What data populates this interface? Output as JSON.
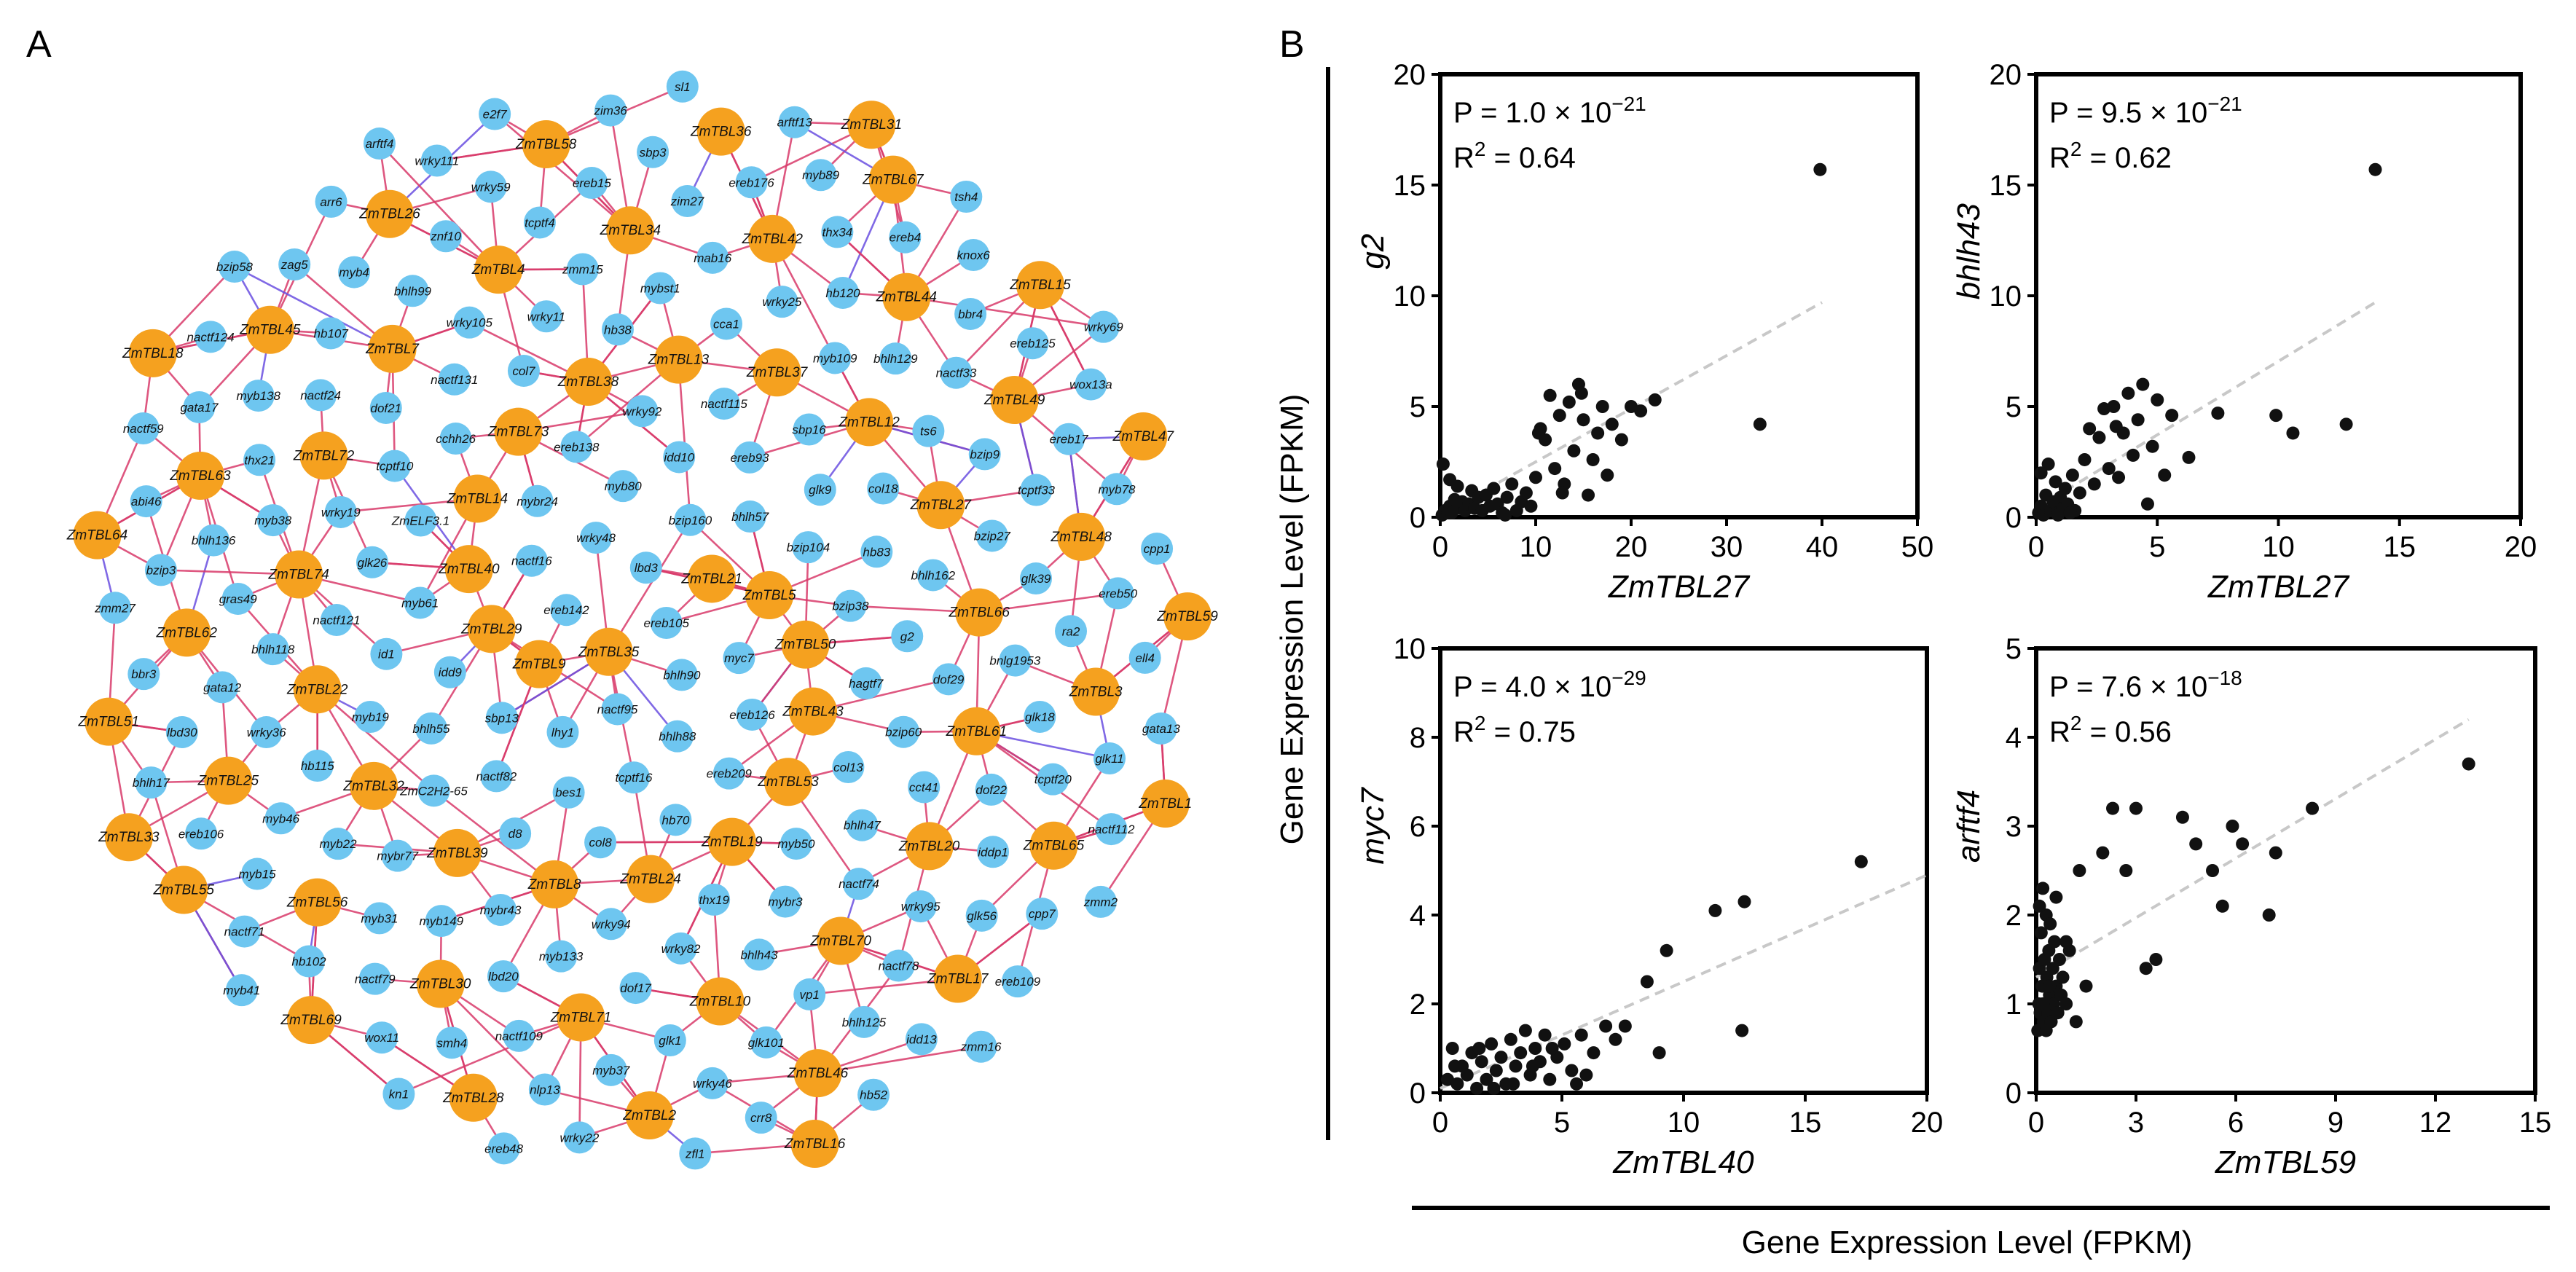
{
  "figure": {
    "panel_a_label": "A",
    "panel_b_label": "B",
    "shared_y_label": "Gene Expression Level (FPKM)",
    "shared_x_label": "Gene Expression Level (FPKM)"
  },
  "colors": {
    "gene_node": "#f5a11f",
    "tf_node": "#6ec6f0",
    "positive_edge": "#d83a6a",
    "negative_edge": "#6a4fe0",
    "point": "#111111",
    "fit_line": "#c8c8c8"
  },
  "network": {
    "gene_nodes": [
      "ZmTBL35",
      "ZmTBL21",
      "ZmTBL9",
      "ZmTBL5",
      "ZmTBL29",
      "ZmTBL50",
      "ZmTBL40",
      "ZmTBL43",
      "ZmTBL14",
      "ZmTBL53",
      "ZmTBL73",
      "ZmTBL19",
      "ZmTBL38",
      "ZmTBL24",
      "ZmTBL13",
      "ZmTBL8",
      "ZmTBL37",
      "ZmTBL39",
      "ZmTBL12",
      "ZmTBL32",
      "ZmTBL27",
      "ZmTBL22",
      "ZmTBL66",
      "ZmTBL74",
      "ZmTBL61",
      "ZmTBL72",
      "ZmTBL20",
      "ZmTBL7",
      "ZmTBL70",
      "ZmTBL4",
      "ZmTBL10",
      "ZmTBL34",
      "ZmTBL71",
      "ZmTBL42",
      "ZmTBL30",
      "ZmTBL44",
      "ZmTBL56",
      "ZmTBL49",
      "ZmTBL25",
      "ZmTBL48",
      "ZmTBL62",
      "ZmTBL3",
      "ZmTBL63",
      "ZmTBL65",
      "ZmTBL45",
      "ZmTBL17",
      "ZmTBL26",
      "ZmTBL46",
      "ZmTBL58",
      "ZmTBL2",
      "ZmTBL36",
      "ZmTBL28",
      "ZmTBL67",
      "ZmTBL69",
      "ZmTBL15",
      "ZmTBL55",
      "ZmTBL47",
      "ZmTBL51",
      "ZmTBL59",
      "ZmTBL64",
      "ZmTBL1",
      "ZmTBL33",
      "ZmTBL31",
      "ZmTBL16",
      "ZmTBL18"
    ],
    "tf_nodes": [
      "ereb105",
      "lbd3",
      "bhlh90",
      "ereb142",
      "nactf95",
      "wrky48",
      "myc7",
      "bzip160",
      "bhlh88",
      "nactf16",
      "lhy1",
      "myb80",
      "ereb126",
      "bhlh57",
      "tcptf16",
      "mybr24",
      "sbp13",
      "idd10",
      "ereb209",
      "bzip104",
      "bes1",
      "ereb138",
      "idd9",
      "ereb93",
      "hb70",
      "bzip38",
      "nactf82",
      "wrky92",
      "myb61",
      "glk9",
      "col8",
      "hagtf7",
      "bhlh55",
      "nactf115",
      "ZmELF3.1",
      "hb83",
      "d8",
      "col13",
      "id1",
      "sbp16",
      "cchh26",
      "g2",
      "ZmC2H2-65",
      "myb50",
      "glk26",
      "col18",
      "col7",
      "bzip60",
      "myb19",
      "thx19",
      "tcptf10",
      "bhlh162",
      "hb38",
      "bhlh47",
      "nactf121",
      "wrky94",
      "nactf131",
      "dof29",
      "cca1",
      "mybr3",
      "wrky19",
      "mybr43",
      "wrky11",
      "cct41",
      "myb109",
      "wrky82",
      "dof21",
      "mybr77",
      "mybst1",
      "nactf74",
      "ts6",
      "myb133",
      "wrky105",
      "hb115",
      "wrky25",
      "bhlh43",
      "bzip27",
      "myb149",
      "zmm15",
      "bhlh118",
      "bhlh129",
      "dof17",
      "bnlg1953",
      "myb22",
      "mab16",
      "myb38",
      "bzip9",
      "lbd20",
      "dof22",
      "wrky36",
      "hb120",
      "nactf24",
      "glk39",
      "myb31",
      "wrky95",
      "gras49",
      "nactf33",
      "bhlh99",
      "glk18",
      "myb46",
      "vp1",
      "thx21",
      "tcptf33",
      "tcptf4",
      "iddp1",
      "gata12",
      "glk1",
      "hb107",
      "ra2",
      "zim27",
      "nactf78",
      "bhlh136",
      "nactf109",
      "znf10",
      "tcptf20",
      "thx34",
      "glk101",
      "myb138",
      "nactf79",
      "ereb15",
      "glk56",
      "bbr4",
      "myb37",
      "myb4",
      "myb15",
      "ereb176",
      "bhlh125",
      "ereb17",
      "smh4",
      "wrky59",
      "lbd30",
      "ereb4",
      "wrky46",
      "ereb50",
      "hb102",
      "sbp3",
      "bzip3",
      "ereb125",
      "nlp13",
      "glk11",
      "ereb106",
      "myb89",
      "gata17",
      "myb78",
      "wox11",
      "cpp7",
      "bbr3",
      "knox6",
      "zag5",
      "ell4",
      "nactf71",
      "idd13",
      "abi46",
      "wox13a",
      "wrky111",
      "nactf112",
      "bhlh17",
      "crr8",
      "nactf124",
      "cpp1",
      "zim36",
      "ereb109",
      "zmm27",
      "wrky22",
      "arr6",
      "gata13",
      "arftf13",
      "hb52",
      "nactf59",
      "kn1",
      "e2f7",
      "zmm2",
      "tsh4",
      "zfl1",
      "bzip58",
      "myb41",
      "sl1",
      "zmm16",
      "wrky69",
      "ereb48",
      "arftf4"
    ]
  },
  "chart_data": [
    {
      "type": "scatter",
      "title": "",
      "xlabel": "ZmTBL27",
      "ylabel": "g2",
      "xlim": [
        0,
        50
      ],
      "ylim": [
        0,
        20
      ],
      "xticks": [
        0,
        10,
        20,
        30,
        40,
        50
      ],
      "yticks": [
        0,
        5,
        10,
        15,
        20
      ],
      "xtick_labels": [
        "0",
        "10",
        "20",
        "30",
        "40",
        "50"
      ],
      "ytick_labels": [
        "0",
        "5",
        "10",
        "15",
        "20"
      ],
      "stats": {
        "p_prefix": "P = 1.0 × 10",
        "p_exp": "−21",
        "r2_prefix": "R",
        "r2_sup": "2",
        "r2_value": " = 0.64"
      },
      "fit": {
        "x0": 0,
        "y0": 0.1,
        "x1": 40,
        "y1": 9.7
      },
      "points": [
        [
          0.2,
          0.1
        ],
        [
          0.5,
          0.3
        ],
        [
          0.8,
          0.2
        ],
        [
          1.0,
          0.5
        ],
        [
          1.2,
          0.2
        ],
        [
          1.5,
          0.8
        ],
        [
          1.8,
          1.4
        ],
        [
          2.0,
          0.4
        ],
        [
          2.3,
          0.7
        ],
        [
          2.6,
          0.3
        ],
        [
          3.0,
          0.6
        ],
        [
          3.3,
          1.2
        ],
        [
          3.6,
          0.4
        ],
        [
          4.0,
          0.9
        ],
        [
          4.4,
          0.3
        ],
        [
          4.8,
          1.0
        ],
        [
          5.2,
          0.5
        ],
        [
          5.6,
          1.3
        ],
        [
          6.0,
          0.6
        ],
        [
          6.5,
          0.2
        ],
        [
          7.0,
          0.9
        ],
        [
          7.5,
          1.5
        ],
        [
          8.0,
          0.3
        ],
        [
          8.5,
          0.7
        ],
        [
          9.0,
          1.1
        ],
        [
          9.5,
          0.5
        ],
        [
          10.0,
          1.8
        ],
        [
          10.5,
          4.0
        ],
        [
          11.0,
          3.5
        ],
        [
          11.5,
          5.5
        ],
        [
          12.0,
          2.2
        ],
        [
          12.5,
          4.6
        ],
        [
          13.0,
          1.5
        ],
        [
          13.5,
          5.2
        ],
        [
          14.0,
          3.0
        ],
        [
          14.5,
          6.0
        ],
        [
          15.0,
          4.4
        ],
        [
          15.5,
          1.0
        ],
        [
          16.0,
          2.6
        ],
        [
          16.5,
          3.8
        ],
        [
          17.0,
          5.0
        ],
        [
          17.5,
          1.9
        ],
        [
          18.0,
          4.2
        ],
        [
          19.0,
          3.5
        ],
        [
          20.0,
          5.0
        ],
        [
          21.0,
          4.8
        ],
        [
          22.5,
          5.3
        ],
        [
          33.5,
          4.2
        ],
        [
          39.8,
          15.7
        ],
        [
          0.3,
          2.4
        ],
        [
          1.0,
          1.7
        ],
        [
          6.8,
          0.1
        ],
        [
          10.3,
          3.8
        ],
        [
          12.8,
          1.1
        ],
        [
          14.8,
          5.6
        ]
      ]
    },
    {
      "type": "scatter",
      "title": "",
      "xlabel": "ZmTBL27",
      "ylabel": "bhlh43",
      "xlim": [
        0,
        20
      ],
      "ylim": [
        0,
        20
      ],
      "xticks": [
        0,
        5,
        10,
        15,
        20
      ],
      "yticks": [
        0,
        5,
        10,
        15,
        20
      ],
      "xtick_labels": [
        "0",
        "5",
        "10",
        "15",
        "20"
      ],
      "ytick_labels": [
        "0",
        "5",
        "10",
        "15",
        "20"
      ],
      "stats": {
        "p_prefix": "P = 9.5 × 10",
        "p_exp": "−21",
        "r2_prefix": "R",
        "r2_sup": "2",
        "r2_value": " = 0.62"
      },
      "fit": {
        "x0": 0,
        "y0": 0.4,
        "x1": 14,
        "y1": 9.7
      },
      "points": [
        [
          0.1,
          0.2
        ],
        [
          0.2,
          0.5
        ],
        [
          0.3,
          0.1
        ],
        [
          0.4,
          1.0
        ],
        [
          0.5,
          2.4
        ],
        [
          0.6,
          0.3
        ],
        [
          0.7,
          0.7
        ],
        [
          0.8,
          1.6
        ],
        [
          0.9,
          0.2
        ],
        [
          1.0,
          0.9
        ],
        [
          1.1,
          0.4
        ],
        [
          1.2,
          1.3
        ],
        [
          1.3,
          0.6
        ],
        [
          1.5,
          1.9
        ],
        [
          1.6,
          0.3
        ],
        [
          1.8,
          1.1
        ],
        [
          2.0,
          2.6
        ],
        [
          2.2,
          4.0
        ],
        [
          2.4,
          1.5
        ],
        [
          2.6,
          3.6
        ],
        [
          2.8,
          4.9
        ],
        [
          3.0,
          2.2
        ],
        [
          3.2,
          5.0
        ],
        [
          3.4,
          1.8
        ],
        [
          3.6,
          3.8
        ],
        [
          3.8,
          5.6
        ],
        [
          4.0,
          2.8
        ],
        [
          4.2,
          4.4
        ],
        [
          4.4,
          6.0
        ],
        [
          4.6,
          0.6
        ],
        [
          4.8,
          3.2
        ],
        [
          5.0,
          5.3
        ],
        [
          5.3,
          1.9
        ],
        [
          5.6,
          4.6
        ],
        [
          6.3,
          2.7
        ],
        [
          7.5,
          4.7
        ],
        [
          9.9,
          4.6
        ],
        [
          10.6,
          3.8
        ],
        [
          12.8,
          4.2
        ],
        [
          14.0,
          15.7
        ],
        [
          0.2,
          2.0
        ],
        [
          0.9,
          0.1
        ],
        [
          1.4,
          0.2
        ],
        [
          3.3,
          4.1
        ]
      ]
    },
    {
      "type": "scatter",
      "title": "",
      "xlabel": "ZmTBL40",
      "ylabel": "myc7",
      "xlim": [
        0,
        20
      ],
      "ylim": [
        0,
        10
      ],
      "xticks": [
        0,
        5,
        10,
        15,
        20
      ],
      "yticks": [
        0,
        2,
        4,
        6,
        8,
        10
      ],
      "xtick_labels": [
        "0",
        "5",
        "10",
        "15",
        "20"
      ],
      "ytick_labels": [
        "0",
        "2",
        "4",
        "6",
        "8",
        "10"
      ],
      "stats": {
        "p_prefix": "P = 4.0 × 10",
        "p_exp": "−29",
        "r2_prefix": "R",
        "r2_sup": "2",
        "r2_value": " = 0.75"
      },
      "fit": {
        "x0": 0,
        "y0": 0.1,
        "x1": 20,
        "y1": 4.9
      },
      "points": [
        [
          0.3,
          0.3
        ],
        [
          0.5,
          1.0
        ],
        [
          0.7,
          0.2
        ],
        [
          0.9,
          0.6
        ],
        [
          1.1,
          0.4
        ],
        [
          1.3,
          0.9
        ],
        [
          1.5,
          0.1
        ],
        [
          1.7,
          0.7
        ],
        [
          1.9,
          0.3
        ],
        [
          2.1,
          1.1
        ],
        [
          2.3,
          0.5
        ],
        [
          2.5,
          0.8
        ],
        [
          2.7,
          0.2
        ],
        [
          2.9,
          1.2
        ],
        [
          3.1,
          0.6
        ],
        [
          3.3,
          0.9
        ],
        [
          3.5,
          1.4
        ],
        [
          3.7,
          0.4
        ],
        [
          3.9,
          1.0
        ],
        [
          4.1,
          0.7
        ],
        [
          4.3,
          1.3
        ],
        [
          4.5,
          0.3
        ],
        [
          4.8,
          0.8
        ],
        [
          5.1,
          1.1
        ],
        [
          5.4,
          0.5
        ],
        [
          5.8,
          1.3
        ],
        [
          6.3,
          0.9
        ],
        [
          6.8,
          1.5
        ],
        [
          7.2,
          1.2
        ],
        [
          7.6,
          1.5
        ],
        [
          8.5,
          2.5
        ],
        [
          9.0,
          0.9
        ],
        [
          9.3,
          3.2
        ],
        [
          11.3,
          4.1
        ],
        [
          12.4,
          1.4
        ],
        [
          12.5,
          4.3
        ],
        [
          17.3,
          5.2
        ],
        [
          0.6,
          0.6
        ],
        [
          1.6,
          1.0
        ],
        [
          2.2,
          0.1
        ],
        [
          3.0,
          0.2
        ],
        [
          3.8,
          0.6
        ],
        [
          4.6,
          1.0
        ],
        [
          5.6,
          0.2
        ],
        [
          6.0,
          0.4
        ]
      ]
    },
    {
      "type": "scatter",
      "title": "",
      "xlabel": "ZmTBL59",
      "ylabel": "arftf4",
      "xlim": [
        0,
        15
      ],
      "ylim": [
        0,
        5
      ],
      "xticks": [
        0,
        3,
        6,
        9,
        12,
        15
      ],
      "yticks": [
        0,
        1,
        2,
        3,
        4,
        5
      ],
      "xtick_labels": [
        "0",
        "3",
        "6",
        "9",
        "12",
        "15"
      ],
      "ytick_labels": [
        "0",
        "1",
        "2",
        "3",
        "4",
        "5"
      ],
      "stats": {
        "p_prefix": "P = 7.6 × 10",
        "p_exp": "−18",
        "r2_prefix": "R",
        "r2_sup": "2",
        "r2_value": " = 0.56"
      },
      "fit": {
        "x0": 0,
        "y0": 1.3,
        "x1": 13,
        "y1": 4.2
      },
      "points": [
        [
          0.05,
          0.7
        ],
        [
          0.08,
          1.0
        ],
        [
          0.1,
          1.4
        ],
        [
          0.12,
          0.9
        ],
        [
          0.15,
          1.8
        ],
        [
          0.18,
          1.2
        ],
        [
          0.2,
          2.3
        ],
        [
          0.22,
          0.8
        ],
        [
          0.25,
          1.5
        ],
        [
          0.28,
          1.0
        ],
        [
          0.3,
          2.0
        ],
        [
          0.32,
          1.3
        ],
        [
          0.35,
          0.9
        ],
        [
          0.38,
          1.6
        ],
        [
          0.4,
          1.1
        ],
        [
          0.42,
          1.9
        ],
        [
          0.45,
          0.8
        ],
        [
          0.5,
          1.4
        ],
        [
          0.52,
          1.0
        ],
        [
          0.55,
          1.7
        ],
        [
          0.6,
          1.2
        ],
        [
          0.65,
          0.9
        ],
        [
          0.7,
          1.5
        ],
        [
          0.75,
          1.1
        ],
        [
          0.8,
          1.3
        ],
        [
          0.9,
          1.0
        ],
        [
          1.0,
          1.6
        ],
        [
          1.2,
          0.8
        ],
        [
          1.3,
          2.5
        ],
        [
          1.5,
          1.2
        ],
        [
          2.0,
          2.7
        ],
        [
          2.3,
          3.2
        ],
        [
          2.7,
          2.5
        ],
        [
          3.0,
          3.2
        ],
        [
          3.3,
          1.4
        ],
        [
          3.6,
          1.5
        ],
        [
          4.4,
          3.1
        ],
        [
          4.8,
          2.8
        ],
        [
          5.3,
          2.5
        ],
        [
          5.6,
          2.1
        ],
        [
          5.9,
          3.0
        ],
        [
          6.2,
          2.8
        ],
        [
          7.0,
          2.0
        ],
        [
          7.2,
          2.7
        ],
        [
          8.3,
          3.2
        ],
        [
          13.0,
          3.7
        ],
        [
          0.1,
          2.1
        ],
        [
          0.3,
          0.7
        ],
        [
          0.6,
          2.2
        ],
        [
          0.9,
          1.7
        ],
        [
          0.4,
          1.2
        ],
        [
          0.2,
          1.0
        ]
      ]
    }
  ]
}
